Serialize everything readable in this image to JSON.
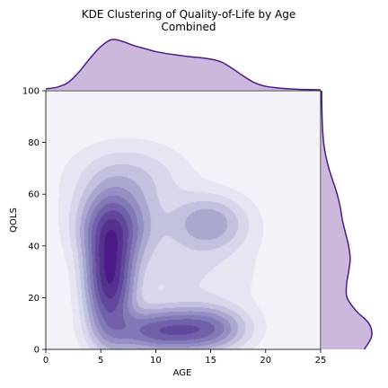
{
  "chart_data": {
    "type": "kde_joint",
    "title": "KDE Clustering of Quality-of-Life by Age",
    "subtitle": "Combined",
    "xlabel": "AGE",
    "ylabel": "QOLS",
    "xlim": [
      0,
      25
    ],
    "ylim": [
      0,
      100
    ],
    "x_ticks": [
      "0",
      "5",
      "10",
      "15",
      "20",
      "25"
    ],
    "y_ticks": [
      "0",
      "20",
      "40",
      "60",
      "80",
      "100"
    ],
    "grid": false,
    "palette": "Purples",
    "line_color": "#4b1a88",
    "fill_color": "#cdb8dd",
    "marginal_x": {
      "x": [
        0,
        1,
        2,
        3,
        4,
        5,
        6,
        7,
        8,
        9,
        10,
        11,
        12,
        13,
        14,
        15,
        16,
        17,
        18,
        19,
        20,
        21,
        22,
        23,
        24,
        25
      ],
      "density": [
        0.02,
        0.05,
        0.14,
        0.35,
        0.62,
        0.86,
        1.0,
        0.96,
        0.88,
        0.82,
        0.76,
        0.72,
        0.69,
        0.66,
        0.64,
        0.61,
        0.55,
        0.42,
        0.27,
        0.14,
        0.07,
        0.04,
        0.02,
        0.01,
        0.005,
        0.0
      ]
    },
    "marginal_y": {
      "y": [
        0,
        5,
        10,
        15,
        20,
        25,
        30,
        35,
        40,
        45,
        50,
        55,
        60,
        65,
        70,
        75,
        80,
        85,
        90,
        95,
        100
      ],
      "density": [
        0.82,
        0.96,
        0.91,
        0.66,
        0.49,
        0.48,
        0.52,
        0.55,
        0.52,
        0.46,
        0.4,
        0.36,
        0.3,
        0.22,
        0.14,
        0.08,
        0.04,
        0.02,
        0.01,
        0.005,
        0.002
      ]
    },
    "density_components": [
      {
        "x": 5.8,
        "y": 28,
        "sx": 1.4,
        "sy": 15,
        "w": 1.0
      },
      {
        "x": 6.3,
        "y": 48,
        "sx": 2.2,
        "sy": 9,
        "w": 0.55
      },
      {
        "x": 10.3,
        "y": 7,
        "sx": 2.8,
        "sy": 5.5,
        "w": 0.65
      },
      {
        "x": 14.8,
        "y": 8,
        "sx": 2.3,
        "sy": 5.5,
        "w": 0.48
      },
      {
        "x": 14.8,
        "y": 49,
        "sx": 2.3,
        "sy": 7,
        "w": 0.33
      },
      {
        "x": 7.5,
        "y": 66,
        "sx": 3.4,
        "sy": 9,
        "w": 0.2
      },
      {
        "x": 12.5,
        "y": 30,
        "sx": 4.5,
        "sy": 14,
        "w": 0.12
      }
    ],
    "contour_levels": [
      0.04,
      0.1,
      0.17,
      0.25,
      0.34,
      0.44,
      0.55,
      0.67,
      0.8,
      0.93
    ],
    "contour_colors": [
      "#e7e5f1",
      "#d7d6ea",
      "#c2c1df",
      "#aba8d0",
      "#9590c3",
      "#8279b7",
      "#7161a9",
      "#62489d",
      "#55318f",
      "#4a1a86"
    ],
    "background_color": "#f3f2f8"
  }
}
